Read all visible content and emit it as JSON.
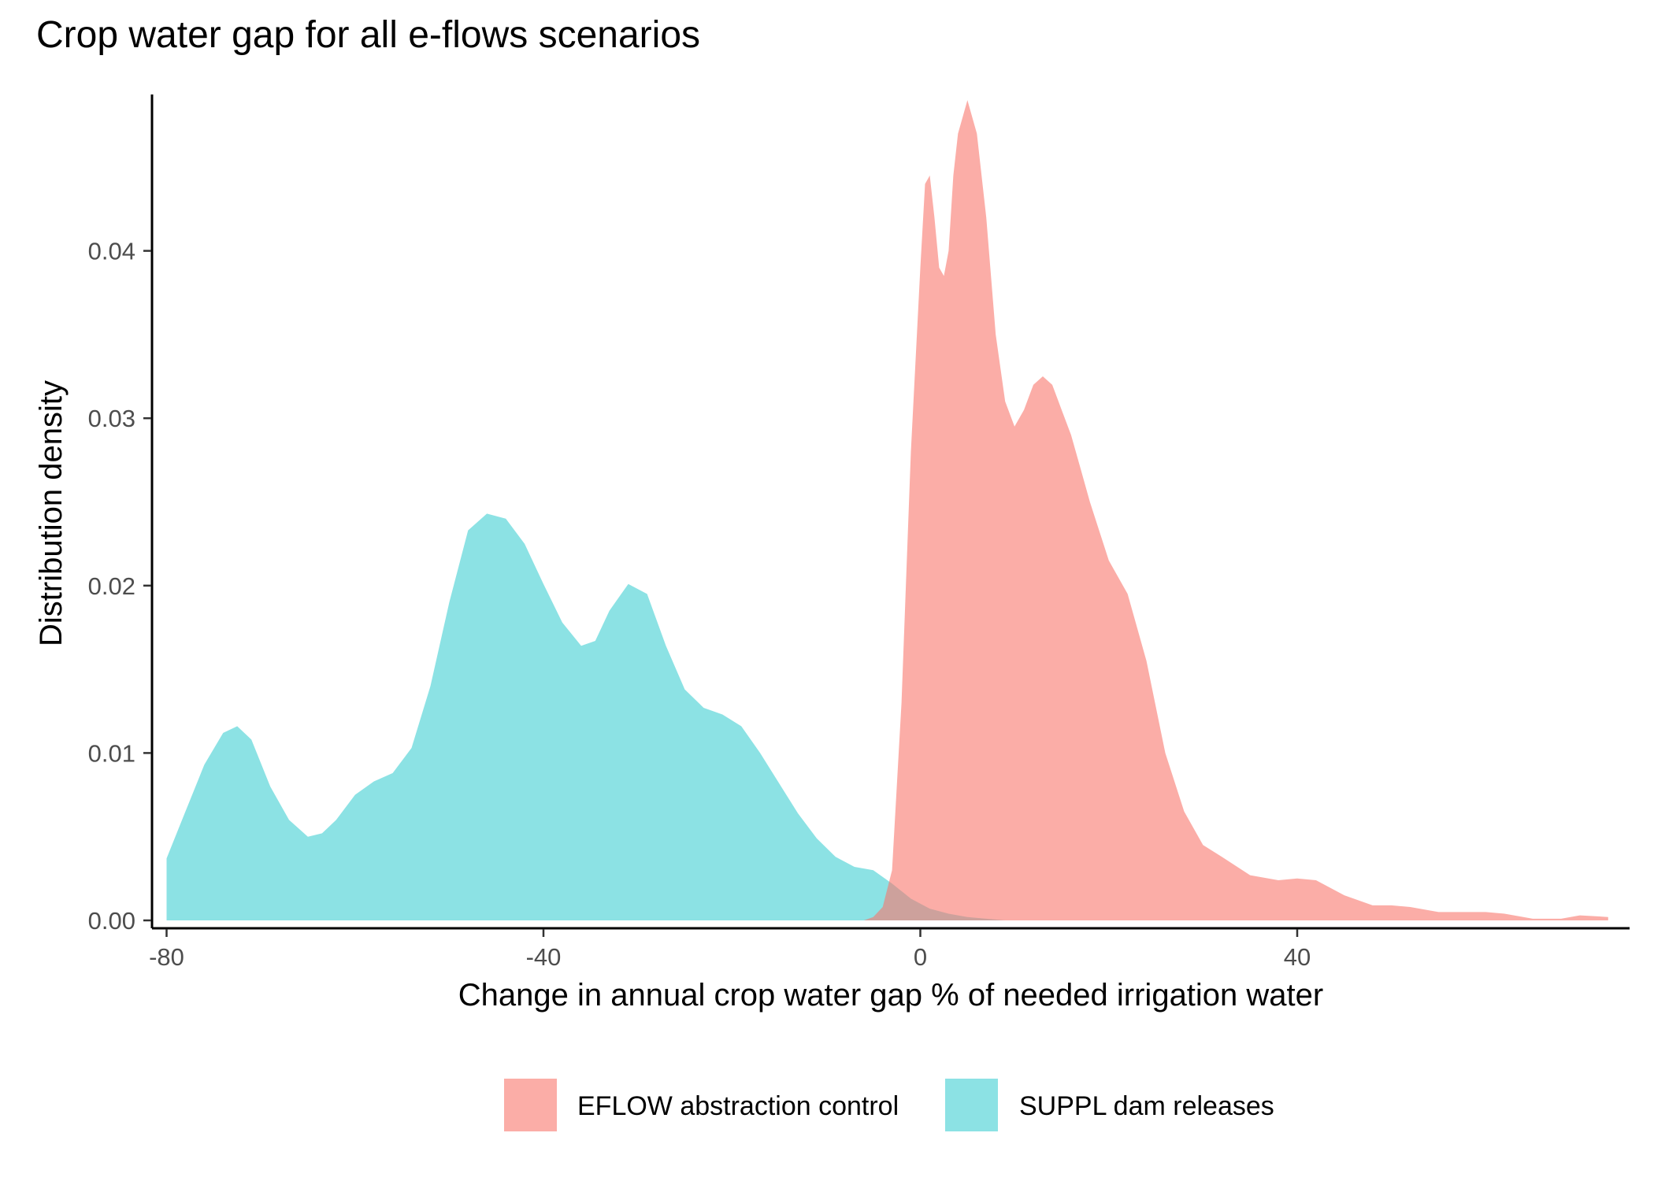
{
  "chart_data": {
    "type": "area",
    "subtype": "density",
    "title": "Crop water gap for all e-flows scenarios",
    "xlabel": "Change in annual crop water gap % of needed irrigation water",
    "ylabel": "Distribution density",
    "xlim": [
      -80,
      73
    ],
    "ylim": [
      0,
      0.049
    ],
    "x_ticks": [
      -80,
      -40,
      0,
      40
    ],
    "x_tick_labels": [
      "-80",
      "-40",
      "0",
      "40"
    ],
    "y_ticks": [
      0,
      0.01,
      0.02,
      0.03,
      0.04
    ],
    "y_tick_labels": [
      "0.00",
      "0.01",
      "0.02",
      "0.03",
      "0.04"
    ],
    "grid": false,
    "legend_position": "bottom",
    "series": [
      {
        "name": "EFLOW abstraction control",
        "color": "#f8766d",
        "opacity": 0.6,
        "x": [
          -6,
          -5,
          -4,
          -3,
          -2,
          -1,
          0,
          0.5,
          1,
          1.5,
          2,
          2.5,
          3,
          3.5,
          4,
          5,
          6,
          7,
          8,
          9,
          10,
          11,
          12,
          13,
          14,
          15,
          16,
          17,
          18,
          20,
          22,
          24,
          26,
          28,
          30,
          32,
          35,
          38,
          40,
          42,
          45,
          48,
          50,
          52,
          55,
          58,
          60,
          62,
          65,
          68,
          70,
          73
        ],
        "y": [
          0.0,
          0.0002,
          0.0008,
          0.003,
          0.013,
          0.028,
          0.039,
          0.044,
          0.0445,
          0.042,
          0.039,
          0.0385,
          0.04,
          0.0445,
          0.047,
          0.049,
          0.047,
          0.042,
          0.035,
          0.031,
          0.0295,
          0.0305,
          0.032,
          0.0325,
          0.032,
          0.0305,
          0.029,
          0.027,
          0.025,
          0.0215,
          0.0195,
          0.0155,
          0.01,
          0.0065,
          0.0045,
          0.0038,
          0.0027,
          0.0024,
          0.0025,
          0.0024,
          0.0015,
          0.0009,
          0.0009,
          0.0008,
          0.0005,
          0.0005,
          0.0005,
          0.0004,
          0.0001,
          0.0001,
          0.0003,
          0.0002
        ]
      },
      {
        "name": "SUPPL dam releases",
        "color": "#00bfc4",
        "opacity": 0.45,
        "x": [
          -80,
          -78,
          -76,
          -74,
          -72.5,
          -71,
          -69,
          -67,
          -65,
          -63.5,
          -62,
          -60,
          -58,
          -56,
          -54,
          -52,
          -50,
          -48,
          -46,
          -44,
          -42,
          -40,
          -38,
          -36,
          -34.5,
          -33,
          -31,
          -29,
          -27,
          -25,
          -23,
          -21,
          -19,
          -17,
          -15,
          -13,
          -11,
          -9,
          -7,
          -5,
          -3,
          -1,
          1,
          3,
          5,
          7,
          9,
          10
        ],
        "y": [
          0.0037,
          0.0065,
          0.0093,
          0.0112,
          0.0116,
          0.0108,
          0.008,
          0.006,
          0.005,
          0.0052,
          0.006,
          0.0075,
          0.0083,
          0.0088,
          0.0103,
          0.014,
          0.019,
          0.0233,
          0.0243,
          0.024,
          0.0225,
          0.0201,
          0.0178,
          0.0164,
          0.0167,
          0.0185,
          0.0201,
          0.0195,
          0.0164,
          0.0138,
          0.0127,
          0.0123,
          0.0116,
          0.01,
          0.0082,
          0.0064,
          0.0049,
          0.0038,
          0.0032,
          0.003,
          0.0022,
          0.0013,
          0.0007,
          0.0004,
          0.0002,
          0.0001,
          0.0,
          0.0
        ]
      }
    ]
  }
}
